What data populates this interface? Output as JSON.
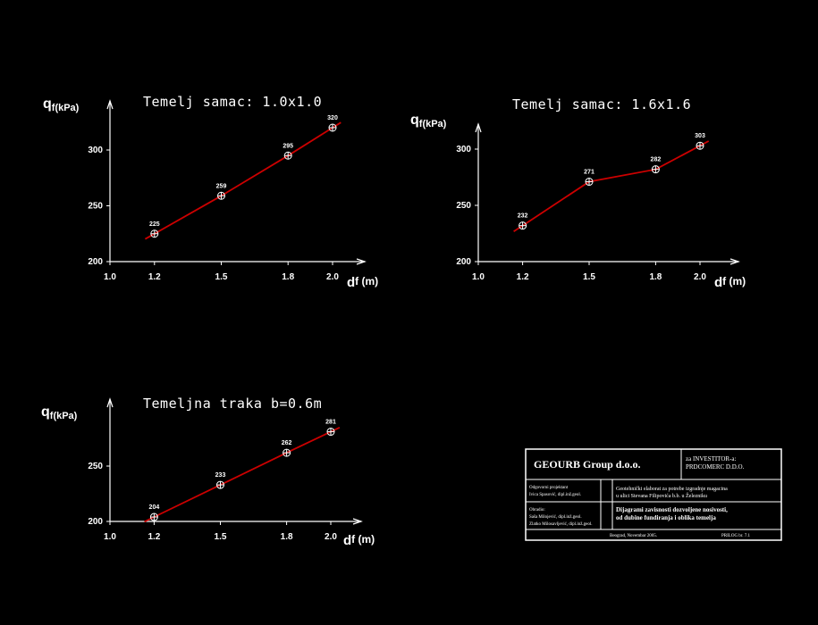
{
  "chart_data": [
    {
      "type": "line",
      "title": "Temelj samac:  1.0x1.0",
      "ylabel_main": "q",
      "ylabel_sub": "f(kPa)",
      "xlabel_main": "d",
      "xlabel_sub": "f (m)",
      "xlim": [
        1.0,
        2.0
      ],
      "ylim": [
        200,
        320
      ],
      "xticks": [
        "1.0",
        "1.2",
        "1.5",
        "1.8",
        "2.0"
      ],
      "yticks": [
        "200",
        "250",
        "300"
      ],
      "x": [
        1.2,
        1.5,
        1.8,
        2.0
      ],
      "values": [
        225,
        259,
        295,
        320
      ],
      "labels": [
        "225",
        "259",
        "295",
        "320"
      ],
      "line_color": "#cc0000"
    },
    {
      "type": "line",
      "title": "Temelj samac:  1.6x1.6",
      "ylabel_main": "q",
      "ylabel_sub": "f(kPa)",
      "xlabel_main": "d",
      "xlabel_sub": "f (m)",
      "xlim": [
        1.0,
        2.0
      ],
      "ylim": [
        200,
        310
      ],
      "xticks": [
        "1.0",
        "1.2",
        "1.5",
        "1.8",
        "2.0"
      ],
      "yticks": [
        "200",
        "250",
        "300"
      ],
      "x": [
        1.2,
        1.5,
        1.8,
        2.0
      ],
      "values": [
        232,
        271,
        282,
        303
      ],
      "labels": [
        "232",
        "271",
        "282",
        "303"
      ],
      "line_color": "#cc0000"
    },
    {
      "type": "line",
      "title": "Temeljna  traka  b=0.6m",
      "ylabel_main": "q",
      "ylabel_sub": "f(kPa)",
      "xlabel_main": "d",
      "xlabel_sub": "f (m)",
      "xlim": [
        1.0,
        2.0
      ],
      "ylim": [
        200,
        290
      ],
      "xticks": [
        "1.0",
        "1.2",
        "1.5",
        "1.8",
        "2.0"
      ],
      "yticks": [
        "200",
        "250"
      ],
      "x": [
        1.2,
        1.5,
        1.8,
        2.0
      ],
      "values": [
        204,
        233,
        262,
        281
      ],
      "labels": [
        "204",
        "233",
        "262",
        "281"
      ],
      "line_color": "#cc0000"
    }
  ],
  "title_block": {
    "company": "GEOURB Group d.o.o.",
    "investor_label": "za INVESTITOR-a:",
    "investor_name": "PRDCOMERC D.D.O.",
    "responsible_label": "Odgovorni projektant",
    "responsible_name": "Ivica Spasović, dipl.inž.geol.",
    "project_line1": "Geotehnički elaborat za potrebe izgradnje magacina",
    "project_line2": "u ulici  Stevana Filipovića b.b.  u Železniku",
    "authors_label": "Obradio:",
    "author1": "Saša Milojević, dipl.inž.geol.",
    "author2": "Zlatko Milosavljević, dipl.inž.geol.",
    "drawing_title1": "Dijagrami zavisnosti dozvoljene nosivosti,",
    "drawing_title2": "od dubine fundiranja  i oblika temelja",
    "place_date": "Beograd,   Novembar 2005.",
    "sheet": "PRILOG br. 7.1"
  }
}
